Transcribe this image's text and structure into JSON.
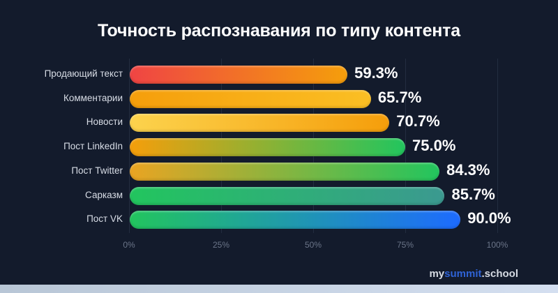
{
  "chart_data": {
    "type": "bar",
    "orientation": "horizontal",
    "title": "Точность распознавания по типу контента",
    "xlabel": "",
    "ylabel": "",
    "xlim": [
      0,
      100
    ],
    "grid": true,
    "categories": [
      "Продающий текст",
      "Комментарии",
      "Новости",
      "Пост LinkedIn",
      "Пост Twitter",
      "Сарказм",
      "Пост VK"
    ],
    "values": [
      59.3,
      65.7,
      70.7,
      75.0,
      84.3,
      85.7,
      90.0
    ],
    "value_labels": [
      "59.3%",
      "65.7%",
      "70.7%",
      "75.0%",
      "84.3%",
      "85.7%",
      "90.0%"
    ],
    "x_ticks": [
      "0%",
      "25%",
      "50%",
      "75%",
      "100%"
    ],
    "bar_gradients": [
      [
        "#ef4444",
        "#f59e0b"
      ],
      [
        "#f59e0b",
        "#fbbf24"
      ],
      [
        "#fcd34d",
        "#f59e0b"
      ],
      [
        "#f59e0b",
        "#22c55e"
      ],
      [
        "#eaa422",
        "#22c55e"
      ],
      [
        "#22c55e",
        "#3b9990"
      ],
      [
        "#22c55e",
        "#1d6bff"
      ]
    ]
  },
  "brand": {
    "prefix": "my",
    "accent": "summit",
    "suffix": ".school",
    "accent_color": "#2f63d6"
  }
}
